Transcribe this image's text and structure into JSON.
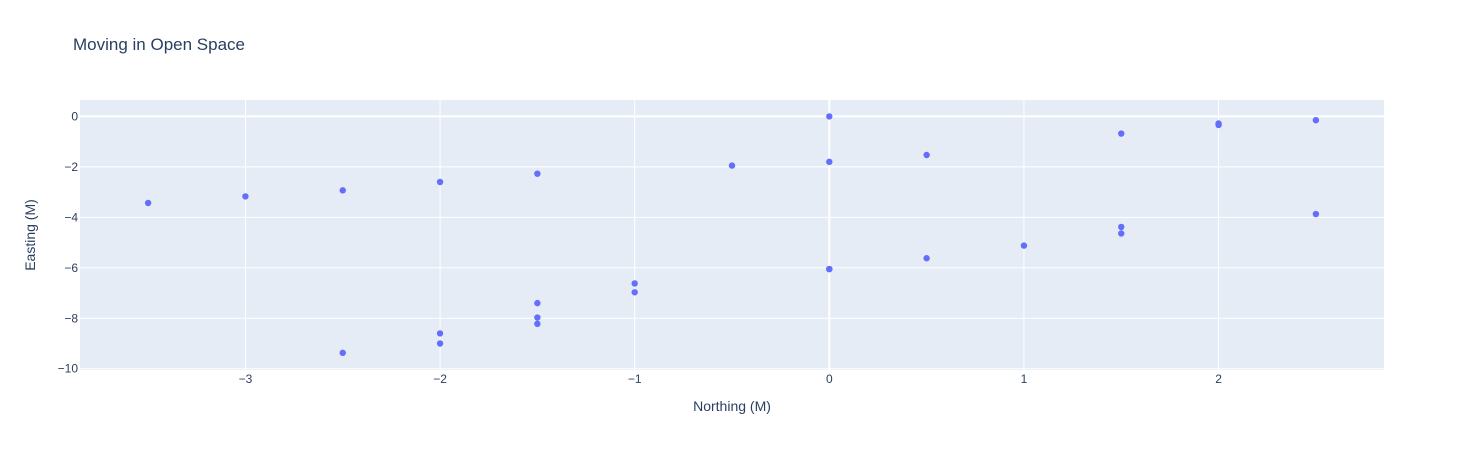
{
  "chart_data": {
    "type": "scatter",
    "title": "Moving in Open Space",
    "xlabel": "Northing (M)",
    "ylabel": "Easting (M)",
    "xlim": [
      -3.85,
      2.85
    ],
    "ylim": [
      -10.05,
      0.65
    ],
    "x_ticks": [
      -3,
      -2,
      -1,
      0,
      1,
      2
    ],
    "x_tick_labels": [
      "−3",
      "−2",
      "−1",
      "0",
      "1",
      "2"
    ],
    "y_ticks": [
      0,
      -2,
      -4,
      -6,
      -8,
      -10
    ],
    "y_tick_labels": [
      "0",
      "−2",
      "−4",
      "−6",
      "−8",
      "−10"
    ],
    "grid": true,
    "colors": {
      "plot_background": "#e5ecf6",
      "grid": "#ffffff",
      "marker": "#636efa",
      "text": "#2a3f5f"
    },
    "series": [
      {
        "x": [
          0,
          0,
          0,
          -0.5,
          -1.5,
          -2,
          -2.5,
          -3,
          -3.5,
          0.5,
          1.5,
          2,
          2,
          2.5,
          2.5,
          1.5,
          1.5,
          1,
          0.5,
          0,
          -1,
          -1,
          -1.5,
          -1.5,
          -1.5,
          -2,
          -2,
          -2.5
        ],
        "y": [
          0,
          -1.8,
          -6.05,
          -1.95,
          -2.27,
          -2.6,
          -2.93,
          -3.17,
          -3.43,
          -1.53,
          -0.68,
          -0.28,
          -0.34,
          -0.15,
          -3.87,
          -4.38,
          -4.64,
          -5.12,
          -5.62,
          -6.05,
          -6.62,
          -6.97,
          -7.4,
          -7.97,
          -8.22,
          -8.6,
          -9.0,
          -9.37
        ]
      }
    ]
  }
}
